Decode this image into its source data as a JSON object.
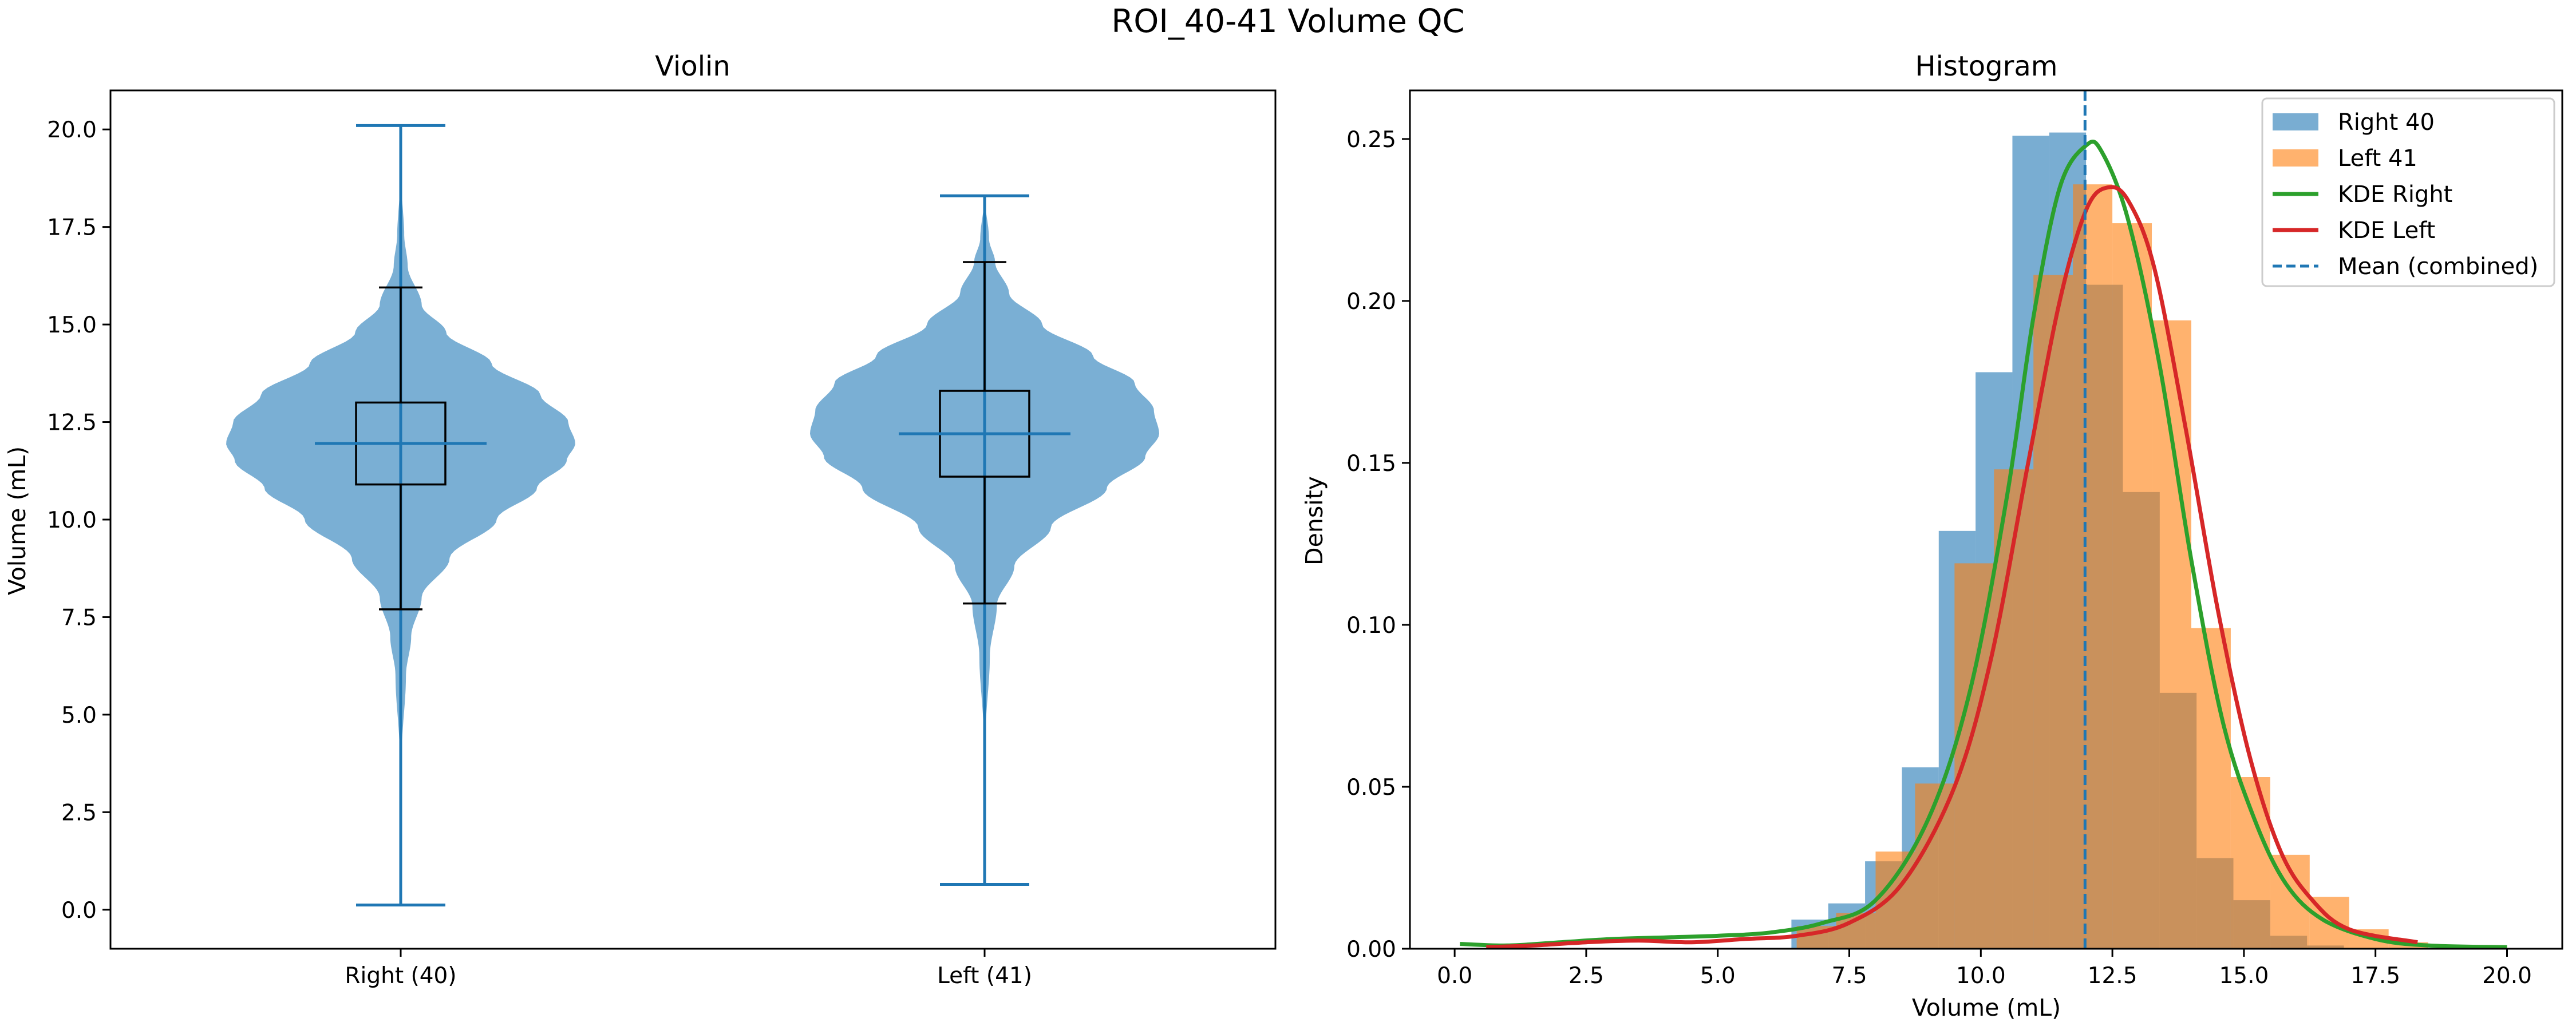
{
  "figure": {
    "title": "ROI_40-41 Volume QC"
  },
  "colors": {
    "right": "#1f77b4",
    "right_fill": "#7aafd4",
    "left": "#ff7f0e",
    "kde_right": "#2ca02c",
    "kde_left": "#d62728",
    "overlap": "#c08a5a",
    "median": "#e07b2a",
    "box": "#000000"
  },
  "chart_data": [
    {
      "type": "violin",
      "title": "Violin",
      "xlabel": "",
      "ylabel": "Volume (mL)",
      "categories": [
        "Right (40)",
        "Left (41)"
      ],
      "ylim": [
        -1.0,
        21.0
      ],
      "yticks": [
        "0.0",
        "2.5",
        "5.0",
        "7.5",
        "10.0",
        "12.5",
        "15.0",
        "17.5",
        "20.0"
      ],
      "series": [
        {
          "min": 0.12,
          "max": 20.1,
          "median": 11.95,
          "mean": 11.95,
          "q1": 10.9,
          "q3": 13.0,
          "whisker_low": 7.7,
          "whisker_high": 15.95,
          "density": [
            [
              0.12,
              0.0
            ],
            [
              4.0,
              0.006
            ],
            [
              6.0,
              0.03
            ],
            [
              7.0,
              0.06
            ],
            [
              8.0,
              0.12
            ],
            [
              9.0,
              0.28
            ],
            [
              10.0,
              0.55
            ],
            [
              10.8,
              0.78
            ],
            [
              11.5,
              0.95
            ],
            [
              11.95,
              1.0
            ],
            [
              12.5,
              0.96
            ],
            [
              13.2,
              0.8
            ],
            [
              14.0,
              0.52
            ],
            [
              14.8,
              0.26
            ],
            [
              15.5,
              0.12
            ],
            [
              16.5,
              0.04
            ],
            [
              17.3,
              0.02
            ],
            [
              18.5,
              0.006
            ],
            [
              20.1,
              0.0
            ]
          ]
        },
        {
          "min": 0.65,
          "max": 18.3,
          "median": 12.2,
          "mean": 12.2,
          "q1": 11.1,
          "q3": 13.3,
          "whisker_low": 7.85,
          "whisker_high": 16.6,
          "density": [
            [
              0.65,
              0.0
            ],
            [
              4.5,
              0.006
            ],
            [
              6.5,
              0.03
            ],
            [
              7.8,
              0.07
            ],
            [
              8.8,
              0.17
            ],
            [
              9.8,
              0.38
            ],
            [
              10.8,
              0.7
            ],
            [
              11.6,
              0.92
            ],
            [
              12.2,
              1.0
            ],
            [
              12.8,
              0.97
            ],
            [
              13.5,
              0.86
            ],
            [
              14.2,
              0.62
            ],
            [
              15.0,
              0.33
            ],
            [
              15.8,
              0.14
            ],
            [
              16.6,
              0.06
            ],
            [
              17.2,
              0.025
            ],
            [
              18.3,
              0.0
            ]
          ]
        }
      ]
    },
    {
      "type": "histogram",
      "title": "Histogram",
      "xlabel": "Volume (mL)",
      "ylabel": "Density",
      "xlim": [
        -0.85,
        21.05
      ],
      "ylim": [
        0.0,
        0.265
      ],
      "xticks": [
        "0.0",
        "2.5",
        "5.0",
        "7.5",
        "10.0",
        "12.5",
        "15.0",
        "17.5",
        "20.0"
      ],
      "yticks": [
        "0.00",
        "0.05",
        "0.10",
        "0.15",
        "0.20",
        "0.25"
      ],
      "mean_combined": 11.98,
      "legend": {
        "location": "upper right",
        "entries": [
          "Right 40",
          "Left 41",
          "KDE Right",
          "KDE Left",
          "Mean (combined)"
        ]
      },
      "series": [
        {
          "name": "Right 40",
          "bin_edges": [
            6.4,
            7.1,
            7.8,
            8.5,
            9.2,
            9.9,
            10.6,
            11.3,
            12.0,
            12.7,
            13.4,
            14.1,
            14.8,
            15.5,
            16.2,
            16.9
          ],
          "values": [
            0.009,
            0.014,
            0.027,
            0.056,
            0.129,
            0.178,
            0.251,
            0.252,
            0.205,
            0.141,
            0.079,
            0.028,
            0.015,
            0.004,
            0.001
          ]
        },
        {
          "name": "Left 41",
          "bin_edges": [
            6.5,
            7.25,
            8.0,
            8.75,
            9.5,
            10.25,
            11.0,
            11.75,
            12.5,
            13.25,
            14.0,
            14.75,
            15.5,
            16.25,
            17.0,
            17.75,
            18.5
          ],
          "values": [
            0.007,
            0.011,
            0.03,
            0.051,
            0.119,
            0.148,
            0.208,
            0.236,
            0.224,
            0.194,
            0.099,
            0.053,
            0.029,
            0.016,
            0.006,
            0.002
          ]
        },
        {
          "name": "KDE Right",
          "points": [
            [
              0.1,
              0.0015
            ],
            [
              1.0,
              0.001
            ],
            [
              2.0,
              0.002
            ],
            [
              3.0,
              0.003
            ],
            [
              4.0,
              0.0035
            ],
            [
              5.0,
              0.004
            ],
            [
              6.0,
              0.005
            ],
            [
              7.0,
              0.008
            ],
            [
              8.0,
              0.015
            ],
            [
              9.0,
              0.04
            ],
            [
              9.8,
              0.08
            ],
            [
              10.5,
              0.14
            ],
            [
              11.0,
              0.195
            ],
            [
              11.5,
              0.235
            ],
            [
              12.0,
              0.248
            ],
            [
              12.3,
              0.246
            ],
            [
              12.8,
              0.225
            ],
            [
              13.4,
              0.18
            ],
            [
              14.0,
              0.12
            ],
            [
              14.6,
              0.07
            ],
            [
              15.2,
              0.04
            ],
            [
              15.8,
              0.02
            ],
            [
              16.5,
              0.009
            ],
            [
              17.5,
              0.003
            ],
            [
              18.5,
              0.001
            ],
            [
              20.0,
              0.0005
            ]
          ]
        },
        {
          "name": "KDE Left",
          "points": [
            [
              0.6,
              0.0005
            ],
            [
              1.5,
              0.001
            ],
            [
              2.5,
              0.002
            ],
            [
              3.5,
              0.0025
            ],
            [
              4.5,
              0.002
            ],
            [
              5.5,
              0.003
            ],
            [
              6.5,
              0.004
            ],
            [
              7.5,
              0.008
            ],
            [
              8.5,
              0.02
            ],
            [
              9.5,
              0.05
            ],
            [
              10.2,
              0.09
            ],
            [
              10.9,
              0.15
            ],
            [
              11.5,
              0.2
            ],
            [
              12.0,
              0.228
            ],
            [
              12.4,
              0.235
            ],
            [
              12.8,
              0.231
            ],
            [
              13.3,
              0.21
            ],
            [
              13.9,
              0.16
            ],
            [
              14.5,
              0.105
            ],
            [
              15.1,
              0.06
            ],
            [
              15.7,
              0.03
            ],
            [
              16.3,
              0.015
            ],
            [
              17.0,
              0.006
            ],
            [
              18.3,
              0.002
            ]
          ]
        }
      ]
    }
  ]
}
